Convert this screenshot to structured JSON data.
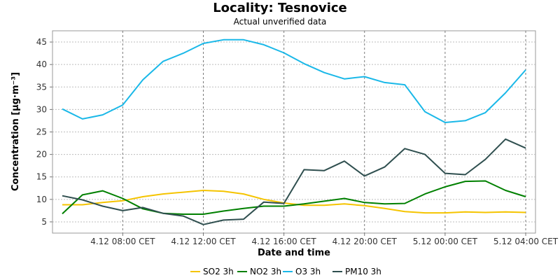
{
  "chart_data": {
    "type": "line",
    "title": "Locality: Tesnovice",
    "subtitle": "Actual unverified data",
    "xlabel": "Date and time",
    "ylabel": "Concentration [µg·m⁻³]",
    "ylim": [
      2.5,
      47.5
    ],
    "y_ticks": [
      5,
      10,
      15,
      20,
      25,
      30,
      35,
      40,
      45
    ],
    "x_ticks": [
      "4.12 08:00 CET",
      "4.12 12:00 CET",
      "4.12 16:00 CET",
      "4.12 20:00 CET",
      "5.12 00:00 CET",
      "5.12 04:00 CET"
    ],
    "x": [
      "4.12 05:00 CET",
      "4.12 06:00 CET",
      "4.12 07:00 CET",
      "4.12 08:00 CET",
      "4.12 09:00 CET",
      "4.12 10:00 CET",
      "4.12 11:00 CET",
      "4.12 12:00 CET",
      "4.12 13:00 CET",
      "4.12 14:00 CET",
      "4.12 15:00 CET",
      "4.12 16:00 CET",
      "4.12 17:00 CET",
      "4.12 18:00 CET",
      "4.12 19:00 CET",
      "4.12 20:00 CET",
      "4.12 21:00 CET",
      "4.12 22:00 CET",
      "4.12 23:00 CET",
      "5.12 00:00 CET",
      "5.12 01:00 CET",
      "5.12 02:00 CET",
      "5.12 03:00 CET",
      "5.12 04:00 CET"
    ],
    "grid": true,
    "legend_position": "bottom",
    "series": [
      {
        "name": "SO2 3h",
        "color": "#f5c400",
        "values": [
          8.8,
          8.8,
          9.3,
          9.7,
          10.6,
          11.2,
          11.6,
          12.0,
          11.8,
          11.2,
          10.0,
          9.2,
          8.7,
          8.7,
          9.0,
          8.6,
          8.0,
          7.3,
          7.0,
          7.0,
          7.2,
          7.1,
          7.2,
          7.1
        ]
      },
      {
        "name": "NO2 3h",
        "color": "#008000",
        "values": [
          6.8,
          11.0,
          11.9,
          10.2,
          7.9,
          6.9,
          6.7,
          6.7,
          7.4,
          8.0,
          8.5,
          8.5,
          9.0,
          9.6,
          10.2,
          9.3,
          9.0,
          9.1,
          11.2,
          12.8,
          14.0,
          14.1,
          12.0,
          10.6
        ]
      },
      {
        "name": "O3 3h",
        "color": "#1ab8e8",
        "values": [
          30.1,
          27.9,
          28.8,
          31.0,
          36.6,
          40.7,
          42.5,
          44.7,
          45.5,
          45.5,
          44.4,
          42.6,
          40.2,
          38.2,
          36.8,
          37.3,
          36.0,
          35.5,
          29.5,
          27.1,
          27.5,
          29.3,
          33.7,
          38.8
        ]
      },
      {
        "name": "PM10 3h",
        "color": "#2f4f4f",
        "values": [
          10.8,
          9.9,
          8.5,
          7.5,
          8.2,
          6.9,
          6.3,
          4.4,
          5.4,
          5.6,
          9.4,
          9.1,
          16.6,
          16.4,
          18.5,
          15.2,
          17.2,
          21.3,
          20.0,
          15.8,
          15.5,
          18.9,
          23.4,
          21.4
        ]
      }
    ]
  }
}
